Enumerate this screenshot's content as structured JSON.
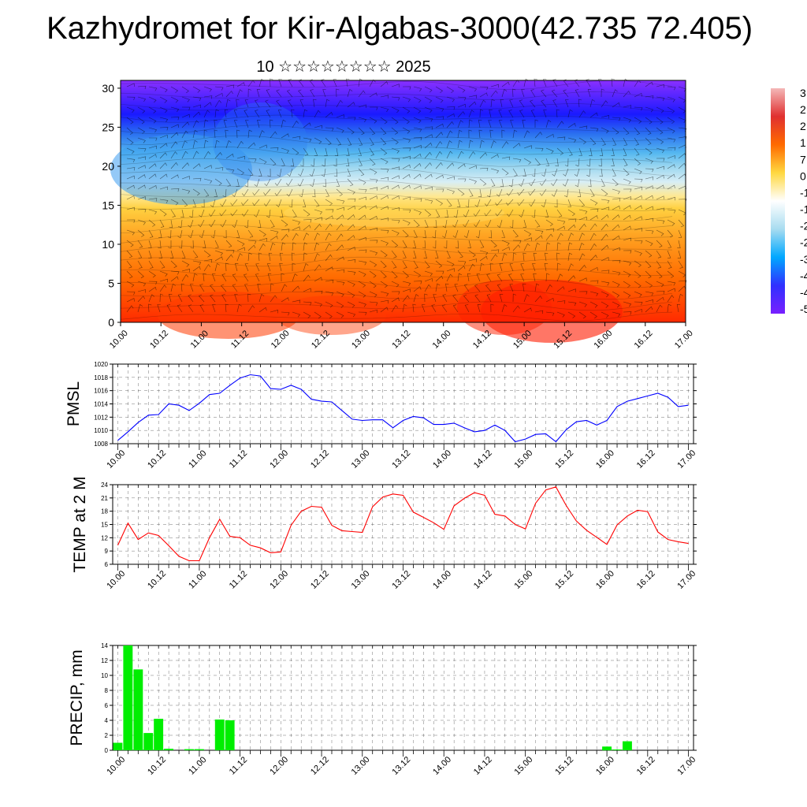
{
  "title": "Kazhydromet for Kir-Algabas-3000(42.735 72.405)",
  "subtitle": "10 ☆☆☆☆☆☆☆☆ 2025",
  "x_tick_labels": [
    "10.00",
    "10.12",
    "11.00",
    "11.12",
    "12.00",
    "12.12",
    "13.00",
    "13.12",
    "14.00",
    "14.12",
    "15.00",
    "15.12",
    "16.00",
    "16.12",
    "17.00"
  ],
  "chart_data": [
    {
      "type": "heatmap",
      "description_of_axes": "time vs height",
      "xlabel": "",
      "ylabel": "",
      "ylim": [
        0,
        31
      ],
      "y_ticks": [
        0,
        5,
        10,
        15,
        20,
        25,
        30
      ],
      "x_tick_labels": [
        "10.00",
        "10.12",
        "11.00",
        "11.12",
        "12.00",
        "12.12",
        "13.00",
        "13.12",
        "14.00",
        "14.12",
        "15.00",
        "15.12",
        "16.00",
        "16.12",
        "17.00"
      ],
      "colorbar": {
        "visible_labels": [
          "3",
          "2",
          "2",
          "1",
          "7",
          "0",
          "-1",
          "-1",
          "-2",
          "-2",
          "-3",
          "-4",
          "-4",
          "-5"
        ],
        "colors": [
          "#f4b8b8",
          "#e03030",
          "#ff6a00",
          "#ffd840",
          "#ffffff",
          "#a8dcf0",
          "#00a8ff",
          "#3030ff",
          "#7820ff"
        ]
      },
      "overlay": "wind barbs",
      "notes": "temperature shading: red/orange near surface, yellow around 13-16, light blue ~18-22, blue/purple above 25"
    },
    {
      "type": "line",
      "ylabel": "PMSL",
      "ylim": [
        1008,
        1020
      ],
      "y_ticks": [
        1008,
        1010,
        1012,
        1014,
        1016,
        1018,
        1020
      ],
      "x_tick_labels": [
        "10.00",
        "10.12",
        "11.00",
        "11.12",
        "12.00",
        "12.12",
        "13.00",
        "13.12",
        "14.00",
        "14.12",
        "15.00",
        "15.12",
        "16.00",
        "16.12",
        "17.00"
      ],
      "x_hours_start": 0,
      "x_hours_step": 3,
      "color": "#0000ff",
      "grid": true,
      "values": [
        1008.5,
        1009.8,
        1011.2,
        1012.3,
        1012.4,
        1014.0,
        1013.8,
        1013.0,
        1014.1,
        1015.4,
        1015.6,
        1016.8,
        1017.9,
        1018.4,
        1018.2,
        1016.3,
        1016.2,
        1016.8,
        1016.2,
        1014.7,
        1014.4,
        1014.3,
        1013.0,
        1011.7,
        1011.5,
        1011.6,
        1011.6,
        1010.4,
        1011.5,
        1012.1,
        1011.9,
        1010.9,
        1010.9,
        1011.1,
        1010.4,
        1009.8,
        1010.0,
        1010.8,
        1010.0,
        1008.3,
        1008.7,
        1009.4,
        1009.5,
        1008.3,
        1010.1,
        1011.3,
        1011.5,
        1010.8,
        1011.5,
        1013.6,
        1014.4,
        1014.8,
        1015.2,
        1015.6,
        1015.0,
        1013.6,
        1013.8
      ]
    },
    {
      "type": "line",
      "ylabel": "TEMP at 2 M",
      "ylim": [
        6,
        24
      ],
      "y_ticks": [
        6,
        9,
        12,
        15,
        18,
        21,
        24
      ],
      "x_tick_labels": [
        "10.00",
        "10.12",
        "11.00",
        "11.12",
        "12.00",
        "12.12",
        "13.00",
        "13.12",
        "14.00",
        "14.12",
        "15.00",
        "15.12",
        "16.00",
        "16.12",
        "17.00"
      ],
      "x_hours_start": 0,
      "x_hours_step": 3,
      "color": "#ff0000",
      "grid": true,
      "values": [
        10.3,
        15.3,
        11.6,
        13.1,
        12.5,
        10.2,
        7.8,
        6.8,
        6.8,
        12.0,
        16.2,
        12.3,
        12.0,
        10.3,
        9.7,
        8.6,
        8.8,
        14.8,
        18.0,
        19.1,
        18.9,
        14.8,
        13.6,
        13.4,
        13.2,
        19.0,
        21.2,
        21.9,
        21.6,
        17.8,
        16.6,
        15.4,
        13.9,
        19.2,
        20.9,
        22.2,
        21.6,
        17.3,
        16.9,
        15.0,
        14.0,
        19.8,
        22.8,
        23.5,
        19.3,
        15.8,
        13.7,
        12.1,
        10.5,
        14.9,
        16.9,
        18.2,
        17.9,
        13.3,
        11.6,
        11.1,
        10.7
      ]
    },
    {
      "type": "bar",
      "ylabel": "PRECIP, mm",
      "ylim": [
        0,
        14
      ],
      "y_ticks": [
        0,
        2,
        4,
        6,
        8,
        10,
        12,
        14
      ],
      "x_tick_labels": [
        "10.00",
        "10.12",
        "11.00",
        "11.12",
        "12.00",
        "12.12",
        "13.00",
        "13.12",
        "14.00",
        "14.12",
        "15.00",
        "15.12",
        "16.00",
        "16.12",
        "17.00"
      ],
      "x_hours_start": 0,
      "x_hours_step": 3,
      "color": "#00ee00",
      "grid": true,
      "values": [
        1.0,
        14.0,
        10.8,
        2.3,
        4.2,
        0.2,
        0,
        0.15,
        0.15,
        0,
        4.1,
        4.0,
        0,
        0,
        0,
        0,
        0,
        0,
        0,
        0,
        0,
        0,
        0,
        0,
        0,
        0,
        0,
        0,
        0,
        0,
        0,
        0,
        0,
        0,
        0,
        0,
        0,
        0,
        0,
        0,
        0,
        0,
        0,
        0,
        0,
        0,
        0,
        0,
        0.5,
        0.1,
        1.2,
        0,
        0,
        0,
        0,
        0,
        0
      ]
    }
  ]
}
